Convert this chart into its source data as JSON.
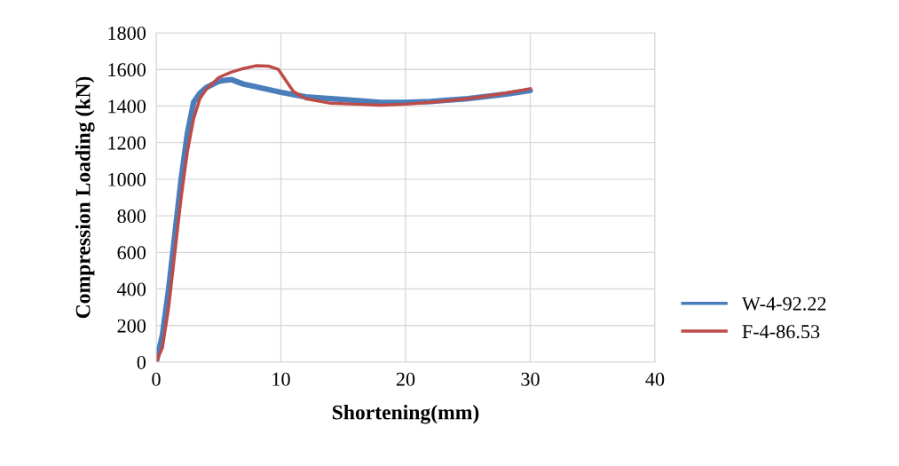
{
  "chart_data": {
    "type": "line",
    "xlabel": "Shortening(mm)",
    "ylabel": "Compression Loading (kN)",
    "xlim": [
      0,
      40
    ],
    "xticks": [
      0,
      10,
      20,
      30,
      40
    ],
    "ylim": [
      0,
      1800
    ],
    "yticks": [
      0,
      200,
      400,
      600,
      800,
      1000,
      1200,
      1400,
      1600,
      1800
    ],
    "grid": true,
    "legend": "right",
    "marker": "none",
    "line_style": "solid",
    "series": [
      {
        "name": "W-4-92.22",
        "color": "#4a7ebb",
        "x": [
          0,
          0.5,
          1,
          1.5,
          2,
          2.5,
          3,
          3.5,
          4,
          5,
          6,
          7,
          8,
          10,
          12,
          15,
          18,
          20,
          22,
          25,
          28,
          30
        ],
        "values": [
          0,
          150,
          400,
          700,
          1000,
          1250,
          1420,
          1470,
          1500,
          1535,
          1545,
          1520,
          1505,
          1475,
          1450,
          1435,
          1420,
          1420,
          1425,
          1440,
          1465,
          1485
        ]
      },
      {
        "name": "F-4-86.53",
        "color": "#be4b48",
        "x": [
          0,
          0.5,
          1,
          1.5,
          2,
          2.5,
          3,
          3.5,
          4,
          5,
          6,
          7,
          8,
          9,
          9.8,
          10.5,
          11,
          12,
          14,
          16,
          18,
          20,
          22,
          25,
          28,
          30
        ],
        "values": [
          0,
          80,
          300,
          600,
          900,
          1150,
          1330,
          1440,
          1490,
          1555,
          1585,
          1605,
          1620,
          1618,
          1600,
          1530,
          1480,
          1440,
          1415,
          1410,
          1405,
          1410,
          1420,
          1440,
          1470,
          1495
        ]
      }
    ]
  }
}
